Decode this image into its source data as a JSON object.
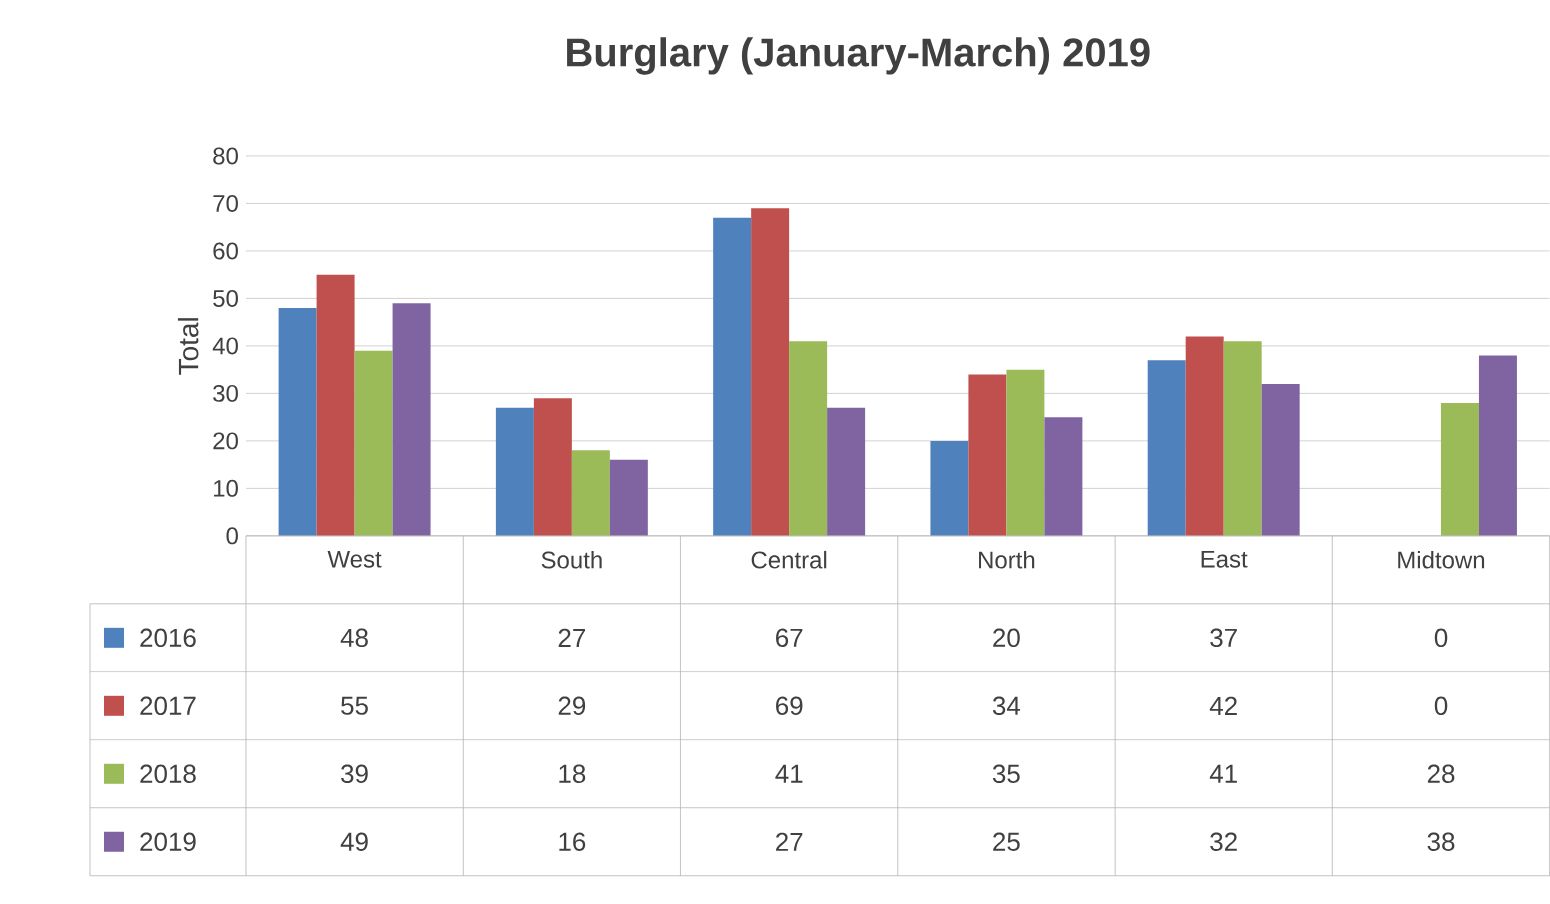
{
  "chart_data": {
    "type": "bar",
    "title": "Burglary (January-March) 2019",
    "ylabel": "Total",
    "categories": [
      "West",
      "South",
      "Central",
      "North",
      "East",
      "Midtown"
    ],
    "series": [
      {
        "name": "2016",
        "color": "#4f81bd",
        "values": [
          48,
          27,
          67,
          20,
          37,
          0
        ]
      },
      {
        "name": "2017",
        "color": "#c0504d",
        "values": [
          55,
          29,
          69,
          34,
          42,
          0
        ]
      },
      {
        "name": "2018",
        "color": "#9bbb59",
        "values": [
          39,
          18,
          41,
          35,
          41,
          28
        ]
      },
      {
        "name": "2019",
        "color": "#8064a2",
        "values": [
          49,
          16,
          27,
          25,
          32,
          38
        ]
      }
    ],
    "ylim": [
      0,
      80
    ],
    "yticks": [
      0,
      10,
      20,
      30,
      40,
      50,
      60,
      70,
      80
    ],
    "grid": "y",
    "legend": "bottom",
    "data_labels": true
  }
}
